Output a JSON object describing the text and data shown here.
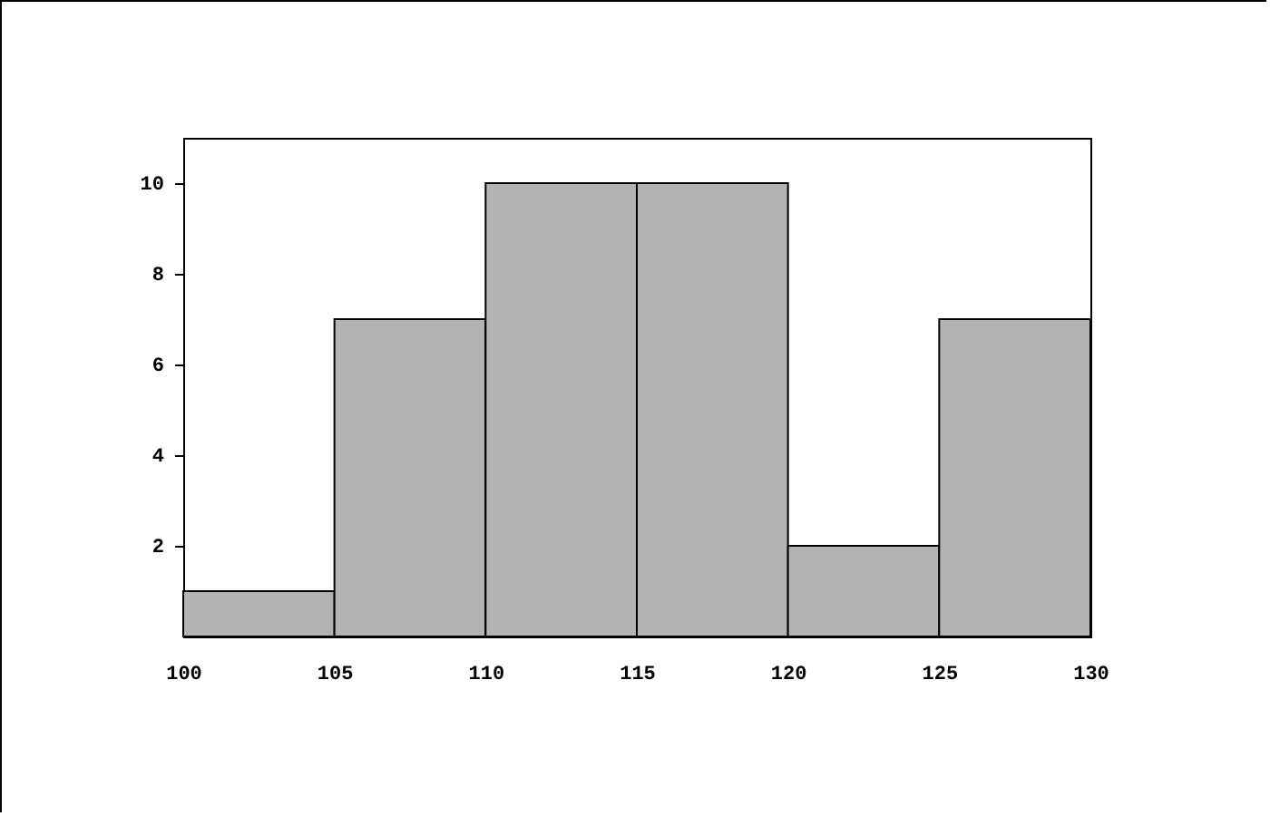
{
  "chart_data": {
    "type": "histogram",
    "bins": [
      100,
      105,
      110,
      115,
      120,
      125,
      130
    ],
    "values": [
      1,
      7,
      10,
      10,
      2,
      7
    ],
    "color": "#b3b3b3",
    "xlim": [
      100,
      130
    ],
    "xticks": [
      100,
      105,
      110,
      115,
      120,
      125,
      130
    ],
    "ylim": [
      0,
      11
    ],
    "yticks": [
      2,
      4,
      6,
      8,
      10
    ],
    "grid": false
  }
}
